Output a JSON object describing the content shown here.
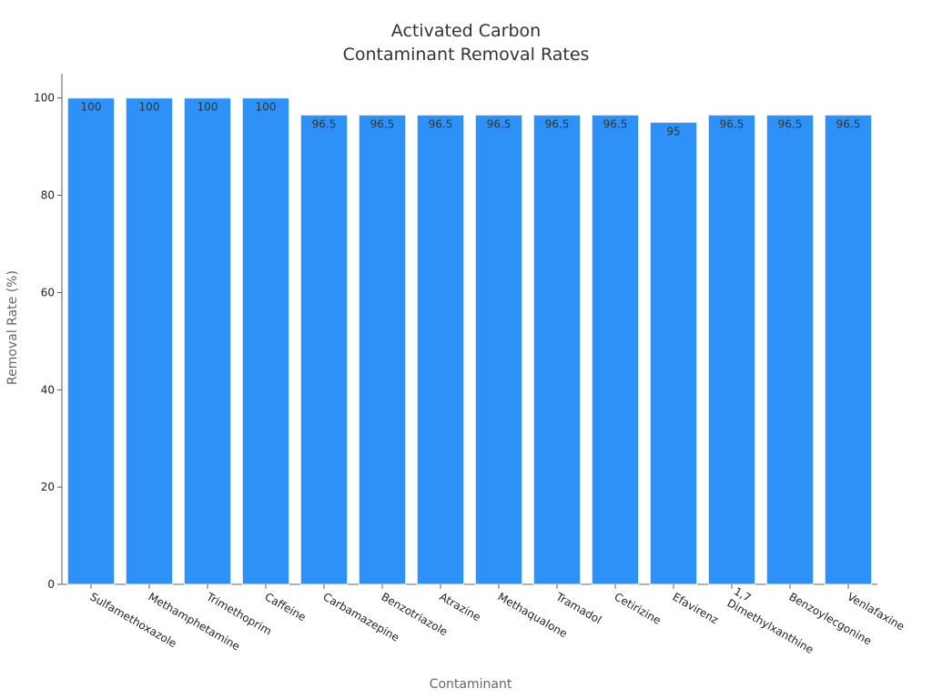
{
  "chart_data": {
    "type": "bar",
    "title": [
      "Activated Carbon",
      "Contaminant Removal Rates"
    ],
    "xlabel": "Contaminant",
    "ylabel": "Removal Rate (%)",
    "ylim": [
      0,
      105
    ],
    "yticks": [
      0,
      20,
      40,
      60,
      80,
      100
    ],
    "grid": false,
    "categories": [
      [
        "Sulfamethoxazole"
      ],
      [
        "Methamphetamine"
      ],
      [
        "Trimethoprim"
      ],
      [
        "Caffeine"
      ],
      [
        "Carbamazepine"
      ],
      [
        "Benzotriazole"
      ],
      [
        "Atrazine"
      ],
      [
        "Methaqualone"
      ],
      [
        "Tramadol"
      ],
      [
        "Cetirizine"
      ],
      [
        "Efavirenz"
      ],
      [
        "1,7",
        "Dimethylxanthine"
      ],
      [
        "Benzoylecgonine"
      ],
      [
        "Venlafaxine"
      ]
    ],
    "values": [
      100,
      100,
      100,
      100,
      96.5,
      96.5,
      96.5,
      96.5,
      96.5,
      96.5,
      95,
      96.5,
      96.5,
      96.5
    ],
    "data_labels": [
      "100",
      "100",
      "100",
      "100",
      "96.5",
      "96.5",
      "96.5",
      "96.5",
      "96.5",
      "96.5",
      "95",
      "96.5",
      "96.5",
      "96.5"
    ],
    "colors": {
      "bar": "#2e91f8",
      "bar_edge": "#e6ecf5",
      "axis": "#333333"
    }
  }
}
